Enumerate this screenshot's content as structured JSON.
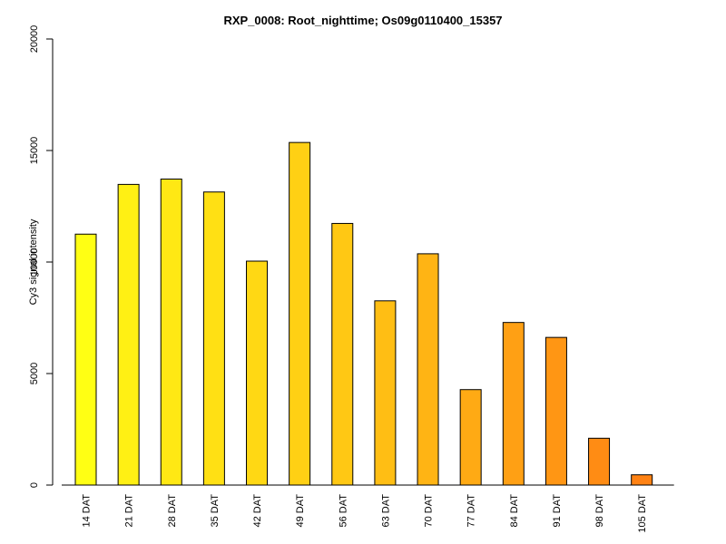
{
  "chart_data": {
    "type": "bar",
    "title": "RXP_0008: Root_nighttime; Os09g0110400_15357",
    "xlabel": "",
    "ylabel": "Cy3  signal intensity",
    "ylim": [
      0,
      20000
    ],
    "yticks": [
      0,
      5000,
      10000,
      15000,
      20000
    ],
    "categories": [
      "14 DAT",
      "21 DAT",
      "28 DAT",
      "35 DAT",
      "42 DAT",
      "49 DAT",
      "56 DAT",
      "63 DAT",
      "70 DAT",
      "77 DAT",
      "84 DAT",
      "91 DAT",
      "98 DAT",
      "105 DAT"
    ],
    "values": [
      11250,
      13480,
      13720,
      13140,
      10040,
      15360,
      11730,
      8260,
      10370,
      4280,
      7290,
      6620,
      2100,
      460
    ],
    "colors": [
      "#FFFF14",
      "#FFF014",
      "#FFE814",
      "#FFE014",
      "#FFD814",
      "#FFD014",
      "#FFC814",
      "#FFBE14",
      "#FFB414",
      "#FFAA14",
      "#FFA014",
      "#FF9614",
      "#FF8C14",
      "#FF8214"
    ],
    "grid": false,
    "legend": "none"
  }
}
